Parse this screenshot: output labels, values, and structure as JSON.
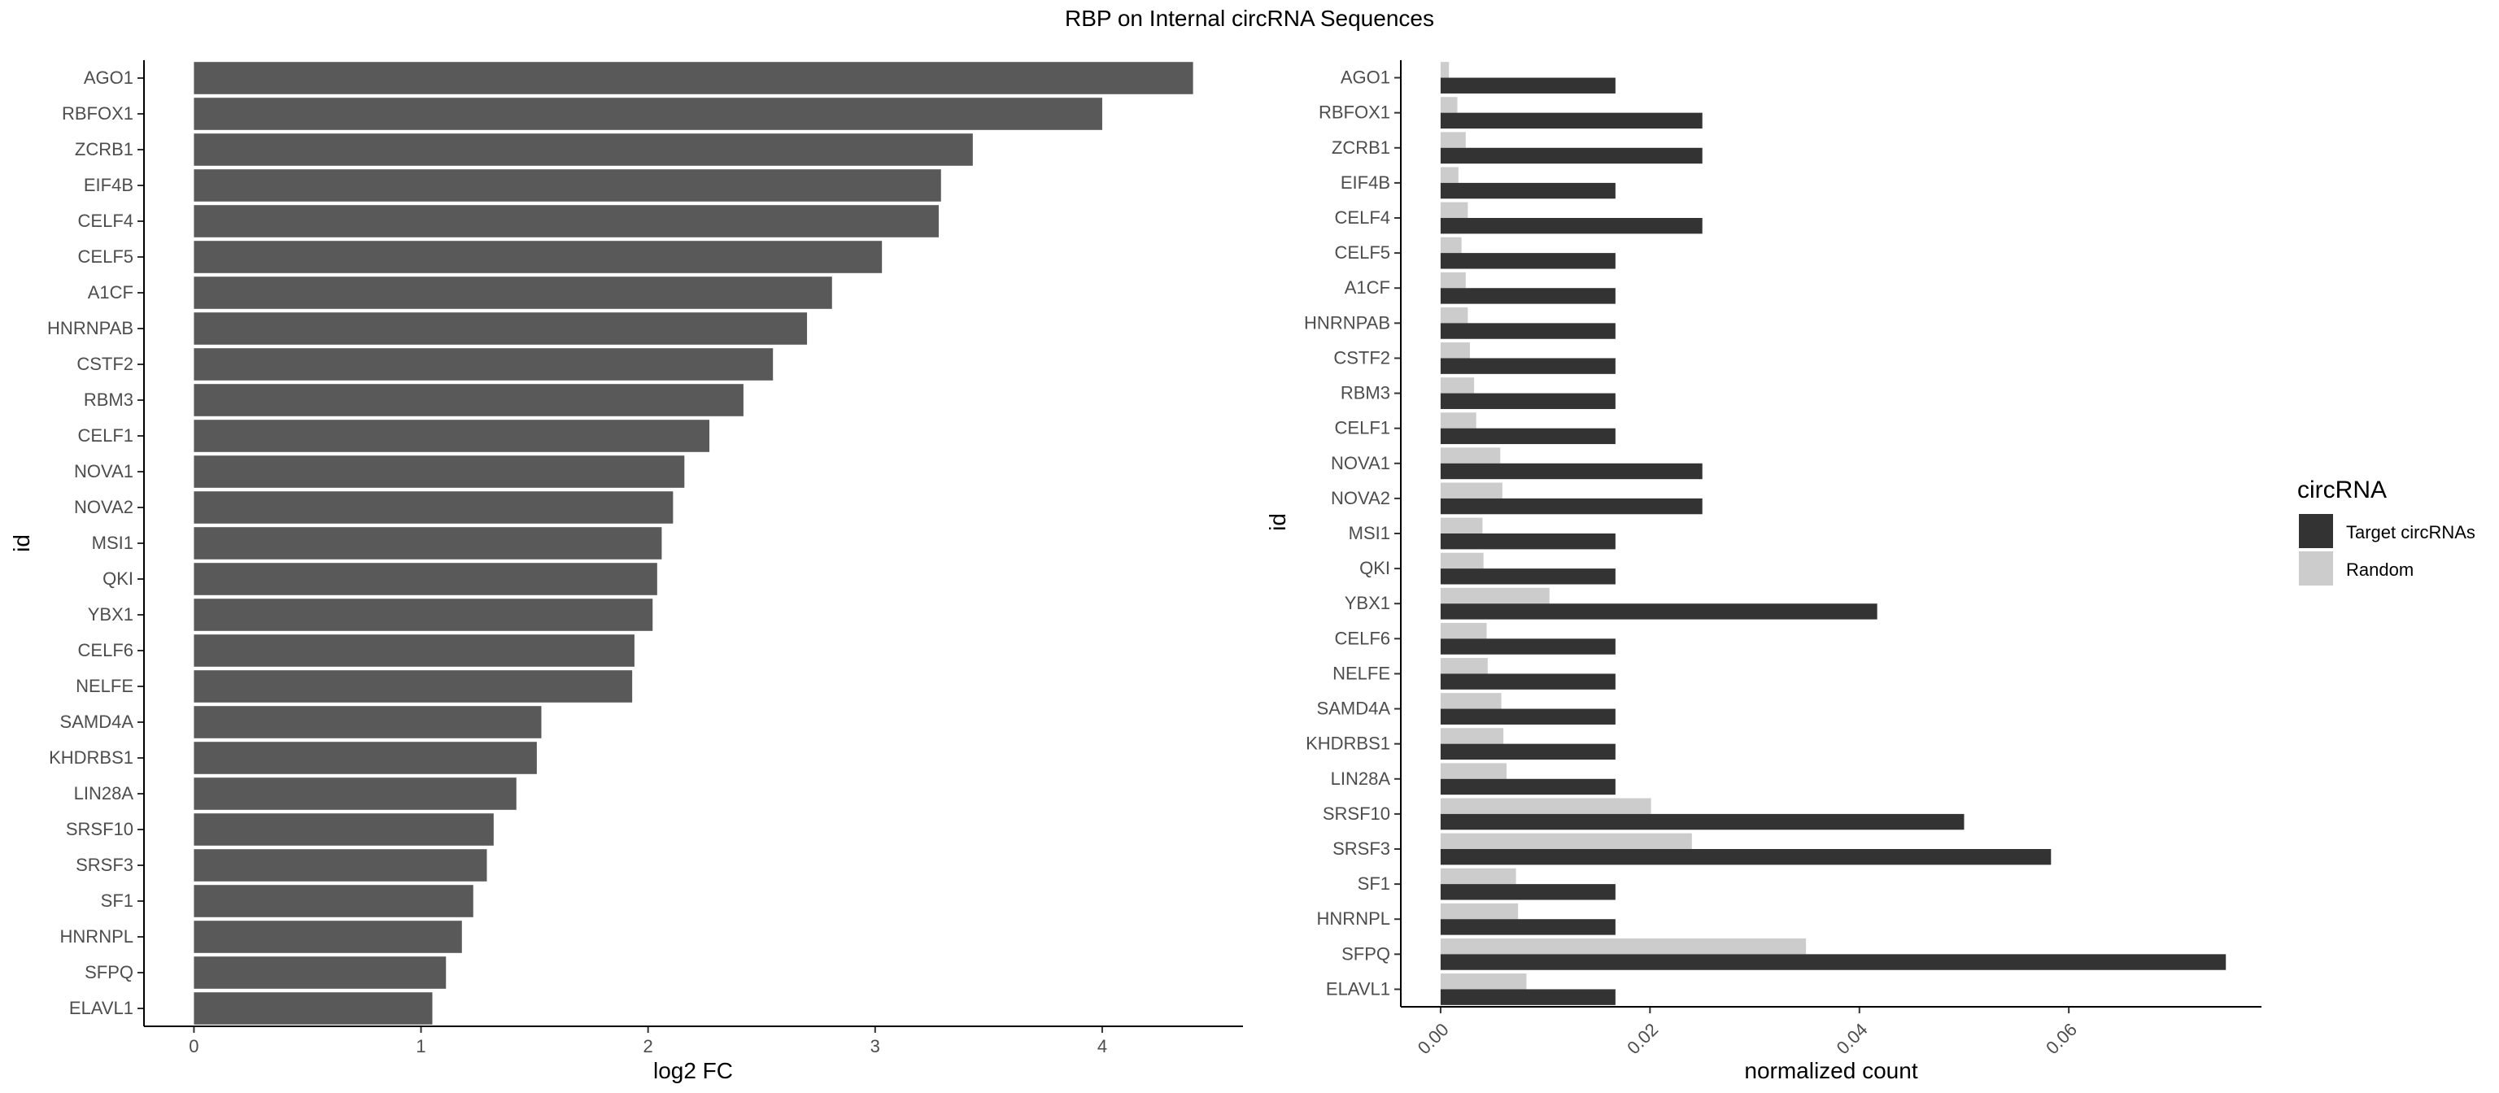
{
  "title": "RBP on Internal circRNA Sequences",
  "chart_data": [
    {
      "type": "bar",
      "orientation": "horizontal",
      "ylabel": "id",
      "xlabel": "log2 FC",
      "xlim": [
        -0.22,
        4.62
      ],
      "xticks": [
        0,
        1,
        2,
        3,
        4
      ],
      "grid": false,
      "bar_color": "#595959",
      "categories": [
        "AGO1",
        "RBFOX1",
        "ZCRB1",
        "EIF4B",
        "CELF4",
        "CELF5",
        "A1CF",
        "HNRNPAB",
        "CSTF2",
        "RBM3",
        "CELF1",
        "NOVA1",
        "NOVA2",
        "MSI1",
        "QKI",
        "YBX1",
        "CELF6",
        "NELFE",
        "SAMD4A",
        "KHDRBS1",
        "LIN28A",
        "SRSF10",
        "SRSF3",
        "SF1",
        "HNRNPL",
        "SFPQ",
        "ELAVL1"
      ],
      "values": [
        4.4,
        4.0,
        3.43,
        3.29,
        3.28,
        3.03,
        2.81,
        2.7,
        2.55,
        2.42,
        2.27,
        2.16,
        2.11,
        2.06,
        2.04,
        2.02,
        1.94,
        1.93,
        1.53,
        1.51,
        1.42,
        1.32,
        1.29,
        1.23,
        1.18,
        1.11,
        1.05
      ]
    },
    {
      "type": "bar",
      "orientation": "horizontal",
      "ylabel": "id",
      "xlabel": "normalized count",
      "xlim": [
        -0.0038,
        0.0784
      ],
      "xticks": [
        0,
        0.02,
        0.04,
        0.06
      ],
      "xtick_labels": [
        "0.00",
        "0.02",
        "0.04",
        "0.06"
      ],
      "grid": false,
      "legend_position": "right",
      "legend_title": "circRNA",
      "categories": [
        "AGO1",
        "RBFOX1",
        "ZCRB1",
        "EIF4B",
        "CELF4",
        "CELF5",
        "A1CF",
        "HNRNPAB",
        "CSTF2",
        "RBM3",
        "CELF1",
        "NOVA1",
        "NOVA2",
        "MSI1",
        "QKI",
        "YBX1",
        "CELF6",
        "NELFE",
        "SAMD4A",
        "KHDRBS1",
        "LIN28A",
        "SRSF10",
        "SRSF3",
        "SF1",
        "HNRNPL",
        "SFPQ",
        "ELAVL1"
      ],
      "series": [
        {
          "name": "Target circRNAs",
          "color": "#333333",
          "values": [
            0.0167,
            0.025,
            0.025,
            0.0167,
            0.025,
            0.0167,
            0.0167,
            0.0167,
            0.0167,
            0.0167,
            0.0167,
            0.025,
            0.025,
            0.0167,
            0.0167,
            0.0417,
            0.0167,
            0.0167,
            0.0167,
            0.0167,
            0.0167,
            0.05,
            0.0583,
            0.0167,
            0.0167,
            0.075,
            0.0167
          ]
        },
        {
          "name": "Random",
          "color": "#cccccc",
          "values": [
            0.0008,
            0.0016,
            0.0024,
            0.0017,
            0.0026,
            0.002,
            0.0024,
            0.0026,
            0.0028,
            0.0032,
            0.0034,
            0.0057,
            0.0059,
            0.004,
            0.0041,
            0.0104,
            0.0044,
            0.0045,
            0.0058,
            0.006,
            0.0063,
            0.0201,
            0.024,
            0.0072,
            0.0074,
            0.0349,
            0.0082
          ]
        }
      ]
    }
  ]
}
